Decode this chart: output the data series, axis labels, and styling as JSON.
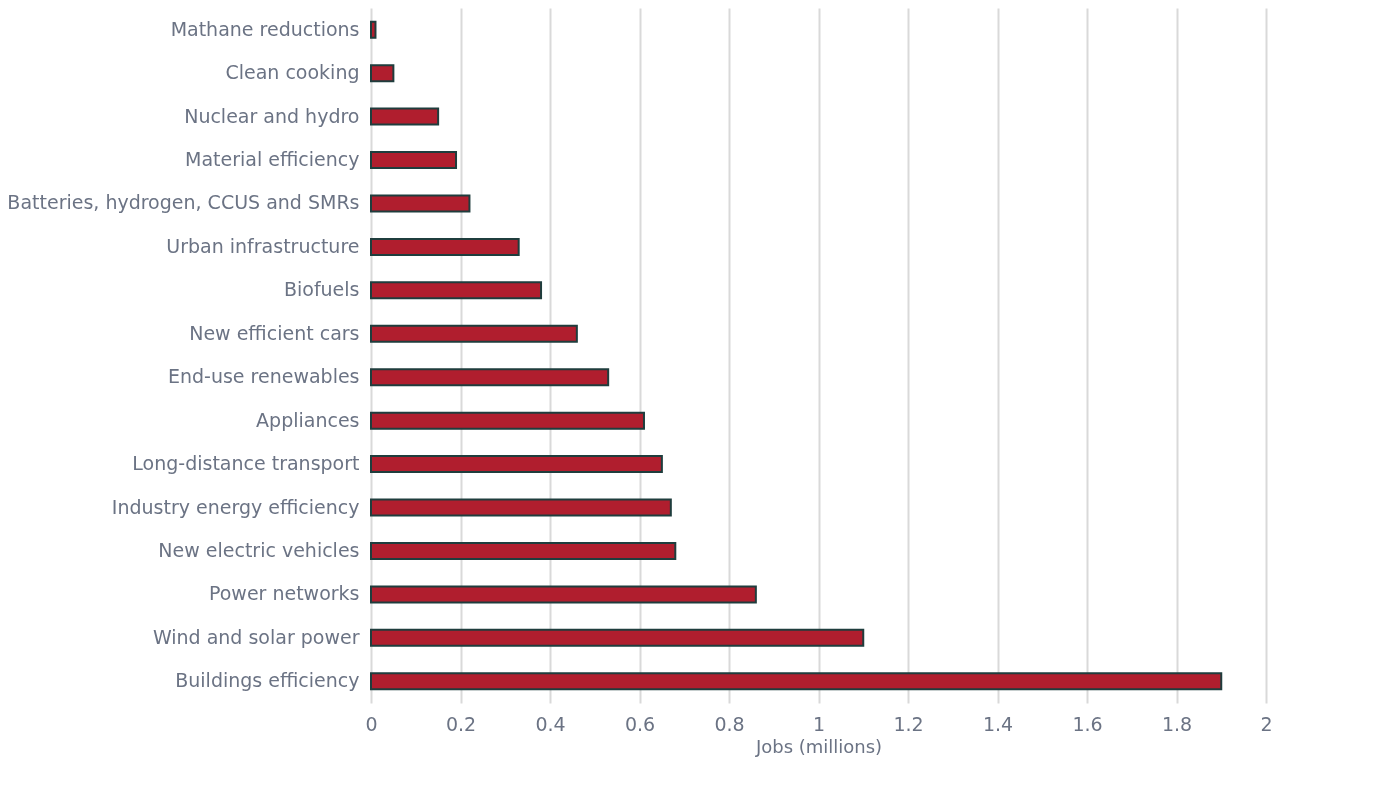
{
  "chart_data": {
    "type": "bar",
    "orientation": "horizontal",
    "xlabel": "Jobs (millions)",
    "categories": [
      "Mathane reductions",
      "Clean cooking",
      "Nuclear and hydro",
      "Material efficiency",
      "Batteries, hydrogen, CCUS and SMRs",
      "Urban infrastructure",
      "Biofuels",
      "New efficient cars",
      "End-use renewables",
      "Appliances",
      "Long-distance transport",
      "Industry energy efficiency",
      "New electric vehicles",
      "Power networks",
      "Wind and solar power",
      "Buildings efficiency"
    ],
    "values": [
      0.01,
      0.05,
      0.15,
      0.19,
      0.22,
      0.33,
      0.38,
      0.46,
      0.53,
      0.61,
      0.65,
      0.67,
      0.68,
      0.86,
      1.1,
      1.9
    ],
    "color": "#b01e2e",
    "xlim": [
      0,
      2
    ],
    "xticks": [
      0,
      0.2,
      0.4,
      0.6,
      0.8,
      1,
      1.2,
      1.4,
      1.6,
      1.8,
      2
    ],
    "grid": "x"
  }
}
